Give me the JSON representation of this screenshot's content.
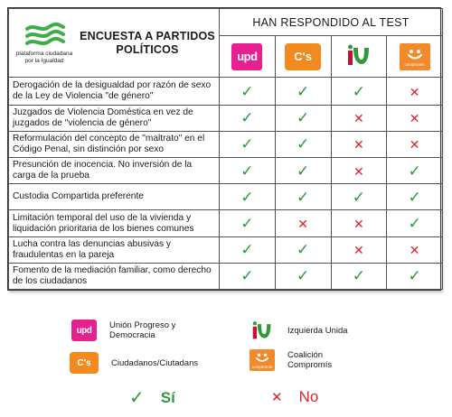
{
  "header": {
    "org_name": "plataforma ciudadana por la Igualdad",
    "title": "ENCUESTA A PARTIDOS POLÍTICOS",
    "responded": "HAN RESPONDIDO AL TEST"
  },
  "parties": [
    {
      "id": "upd",
      "logo_text": "upd",
      "color": "#e6208f"
    },
    {
      "id": "cs",
      "logo_text": "C's",
      "color": "#f28a1e"
    },
    {
      "id": "iu",
      "logo_text": "",
      "color": "#2e9a3a"
    },
    {
      "id": "compromis",
      "logo_text": "compromís",
      "color": "#f08a2a"
    }
  ],
  "rows": [
    {
      "question": "Derogación de la desigualdad por razón de sexo de la Ley de Violencia \"de género\"",
      "answers": [
        "yes",
        "yes",
        "yes",
        "no"
      ]
    },
    {
      "question": "Juzgados de Violencia Doméstica en vez de juzgados de \"violencia de género\"",
      "answers": [
        "yes",
        "yes",
        "no",
        "no"
      ]
    },
    {
      "question": "Reformulación del concepto de \"maltrato\" en el Código Penal, sin distinción por sexo",
      "answers": [
        "yes",
        "yes",
        "no",
        "no"
      ]
    },
    {
      "question": "Presunción de inocencia. No inversión de la carga de la prueba",
      "answers": [
        "yes",
        "yes",
        "no",
        "yes"
      ]
    },
    {
      "question": "Custodia Compartida preferente",
      "answers": [
        "yes",
        "yes",
        "yes",
        "yes"
      ]
    },
    {
      "question": "Limitación temporal del uso de la vivienda y liquidación prioritaria de los bienes comunes",
      "answers": [
        "yes",
        "no",
        "no",
        "yes"
      ]
    },
    {
      "question": "Lucha contra las denuncias abusivas y fraudulentas en la pareja",
      "answers": [
        "yes",
        "yes",
        "no",
        "no"
      ]
    },
    {
      "question": "Fomento de la mediación familiar, como derecho de los ciudadanos",
      "answers": [
        "yes",
        "yes",
        "yes",
        "yes"
      ]
    }
  ],
  "symbols": {
    "yes": "✓",
    "no": "✕"
  },
  "legend": {
    "upd": "Unión Progreso y Democracia",
    "cs": "Ciudadanos/Ciutadans",
    "iu": "Izquierda Unida",
    "compromis": "Coalición Compromís",
    "yes_label": "Sí",
    "no_label": "No"
  }
}
